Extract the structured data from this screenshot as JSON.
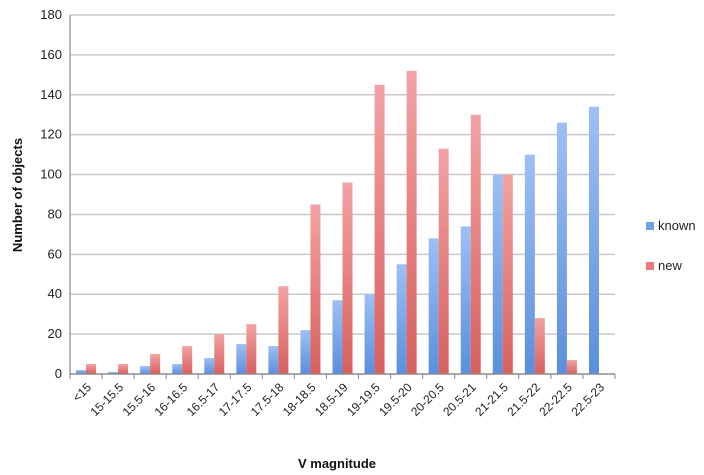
{
  "chart_data": {
    "type": "bar",
    "title": "",
    "xlabel": "V magnitude",
    "ylabel": "Number of objects",
    "ylim": [
      0,
      180
    ],
    "yticks": [
      0,
      20,
      40,
      60,
      80,
      100,
      120,
      140,
      160,
      180
    ],
    "grid": true,
    "legend_position": "right",
    "categories": [
      "<15",
      "15-15.5",
      "15.5-16",
      "16-16.5",
      "16.5-17",
      "17-17.5",
      "17.5-18",
      "18-18.5",
      "18.5-19",
      "19-19.5",
      "19.5-20",
      "20-20.5",
      "20.5-21",
      "21-21.5",
      "21.5-22",
      "22-22.5",
      "22.5-23"
    ],
    "series": [
      {
        "name": "known",
        "color": "#6f9fe6",
        "values": [
          2,
          1,
          4,
          5,
          8,
          15,
          14,
          22,
          37,
          40,
          55,
          68,
          74,
          100,
          110,
          126,
          134
        ]
      },
      {
        "name": "new",
        "color": "#e87a7a",
        "values": [
          5,
          5,
          10,
          14,
          20,
          25,
          44,
          85,
          96,
          145,
          152,
          113,
          130,
          100,
          28,
          7,
          0
        ]
      }
    ]
  }
}
